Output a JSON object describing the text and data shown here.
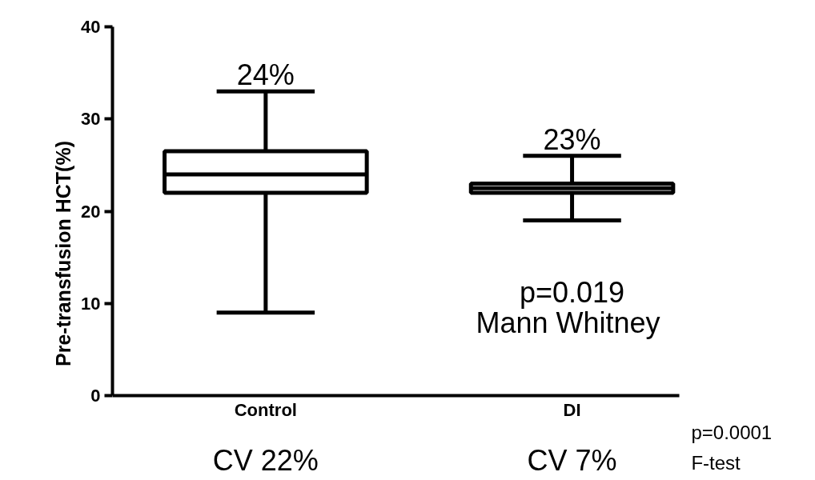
{
  "chart_data": {
    "type": "box",
    "ylabel": "Pre-transfusion HCT(%)",
    "categories": [
      "Control",
      "DI"
    ],
    "boxes": [
      {
        "low": 9,
        "q1": 22,
        "median": 24,
        "q3": 26.5,
        "high": 33
      },
      {
        "low": 19,
        "q1": 22,
        "median": 22.5,
        "q3": 23,
        "high": 26
      }
    ],
    "color": "#000000",
    "ylim": [
      0,
      40
    ],
    "yticks": [
      0,
      10,
      20,
      30,
      40
    ],
    "grid": false,
    "annotations": [
      {
        "text": "24%",
        "x": "Control",
        "y": 33
      },
      {
        "text": "23%",
        "x": "DI",
        "y": 26
      },
      "p=0.019",
      "Mann  Whitney",
      "CV 22%",
      "CV 7%",
      "p=0.0001",
      "F-test"
    ]
  }
}
